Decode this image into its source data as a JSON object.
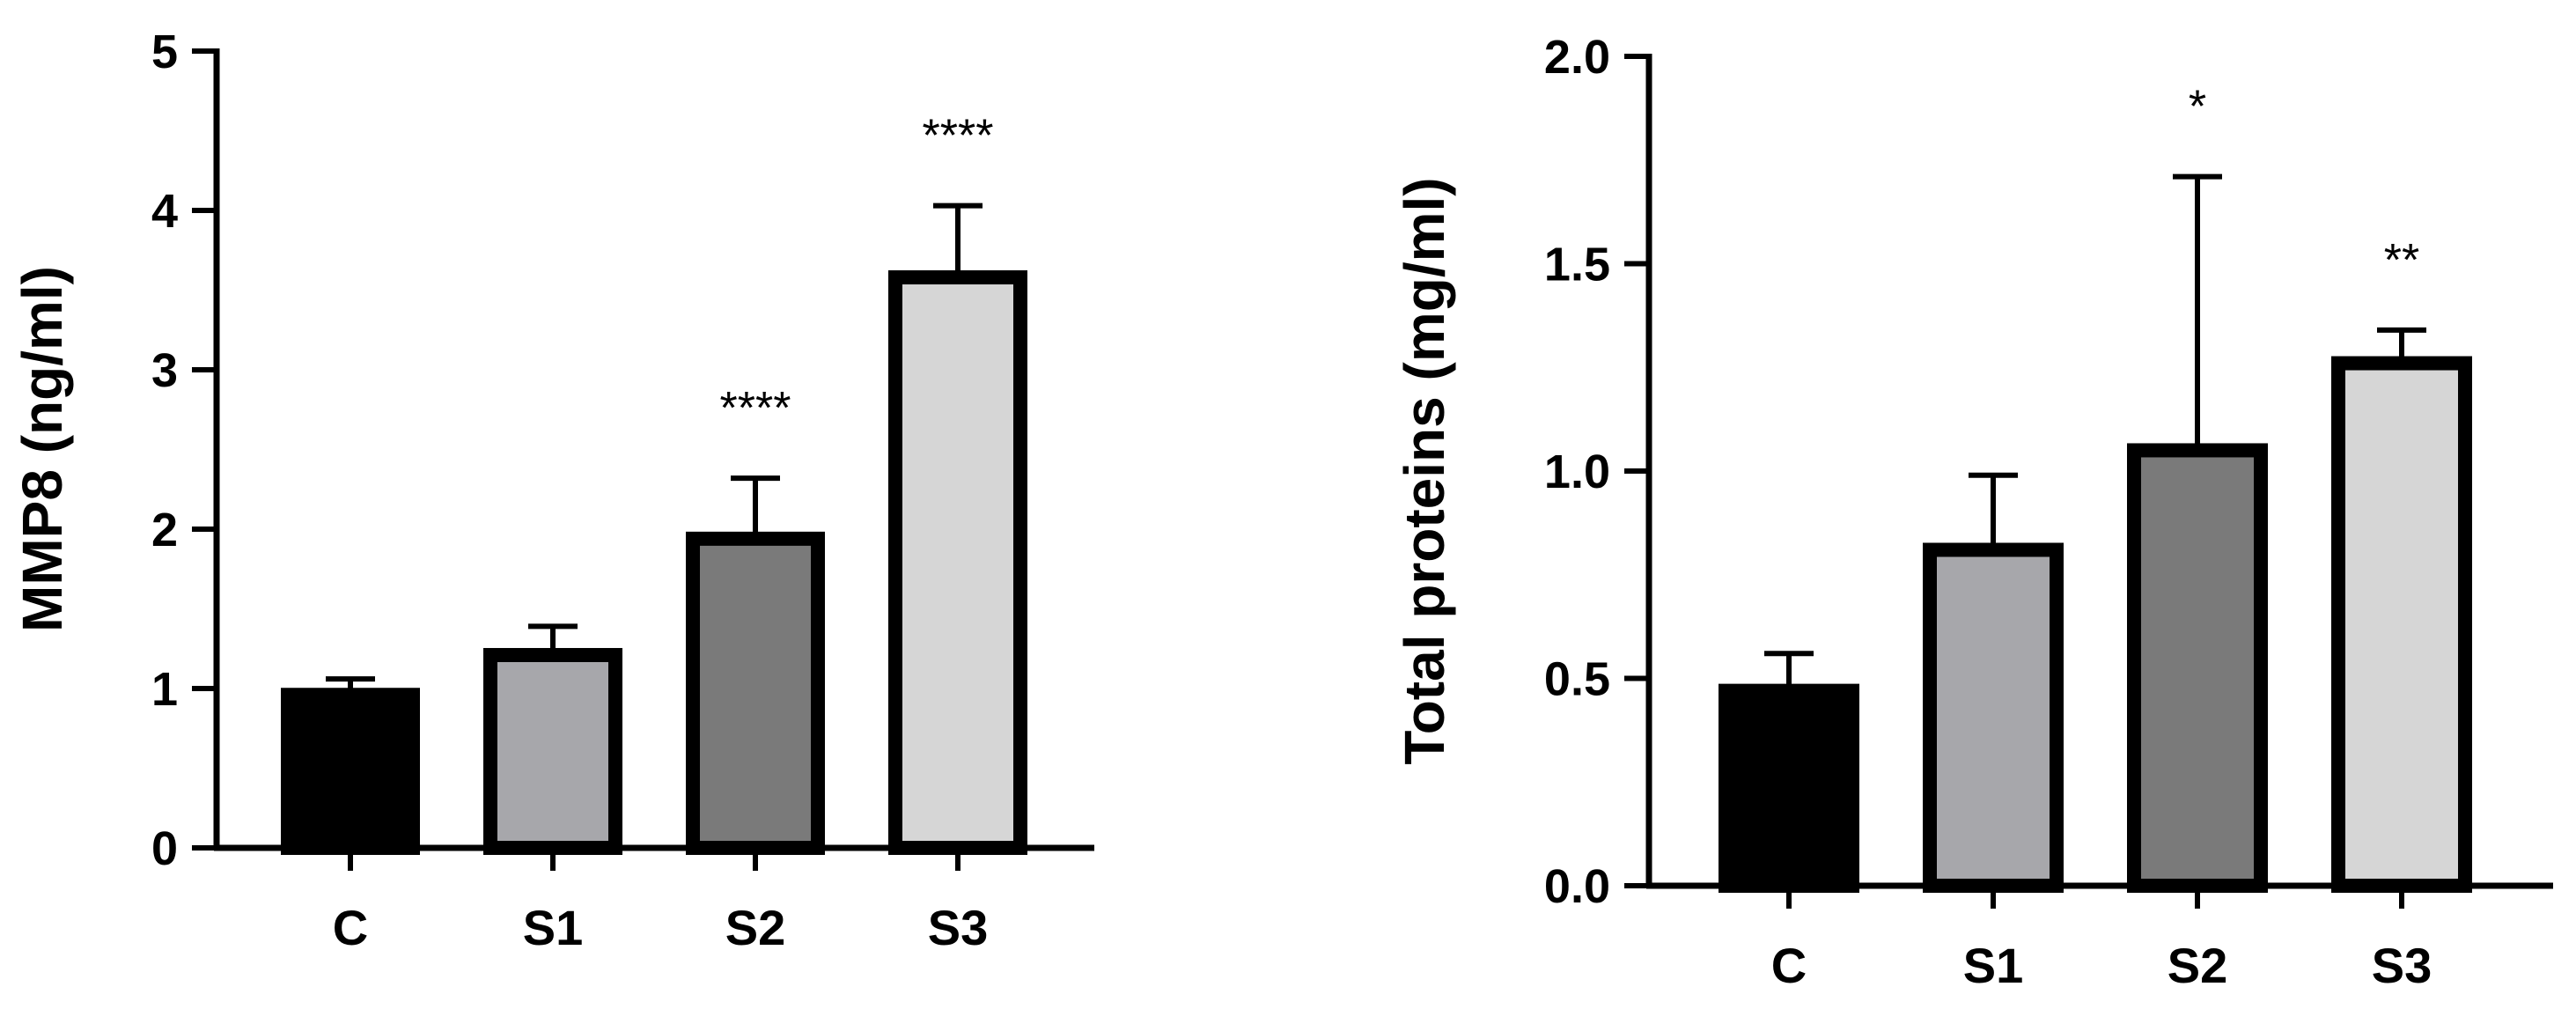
{
  "chart_data": [
    {
      "type": "bar",
      "title": "",
      "xlabel": "",
      "ylabel": "MMP8 (ng/ml)",
      "ylim": [
        0,
        5
      ],
      "yticks": [
        0,
        1,
        2,
        3,
        4,
        5
      ],
      "ytick_labels": [
        "0",
        "1",
        "2",
        "3",
        "4",
        "5"
      ],
      "categories": [
        "C",
        "S1",
        "S2",
        "S3"
      ],
      "values": [
        0.96,
        1.21,
        1.94,
        3.58
      ],
      "errors": [
        0.1,
        0.18,
        0.38,
        0.45
      ],
      "significance": [
        "",
        "",
        "****",
        "****"
      ],
      "bar_colors": [
        "#000000",
        "#a7a7ab",
        "#7a7a7a",
        "#d6d6d6"
      ],
      "grid": false
    },
    {
      "type": "bar",
      "title": "",
      "xlabel": "",
      "ylabel": "Total proteins (mg/ml)",
      "ylim": [
        0,
        2
      ],
      "yticks": [
        0,
        0.5,
        1,
        1.5,
        2
      ],
      "ytick_labels": [
        "0.0",
        "0.5",
        "1.0",
        "1.5",
        "2.0"
      ],
      "categories": [
        "C",
        "S1",
        "S2",
        "S3"
      ],
      "values": [
        0.47,
        0.81,
        1.05,
        1.26
      ],
      "errors": [
        0.09,
        0.18,
        0.66,
        0.08
      ],
      "significance": [
        "",
        "",
        "*",
        "**"
      ],
      "bar_colors": [
        "#000000",
        "#a7a7ab",
        "#7a7a7a",
        "#d6d6d6"
      ],
      "grid": false
    }
  ]
}
